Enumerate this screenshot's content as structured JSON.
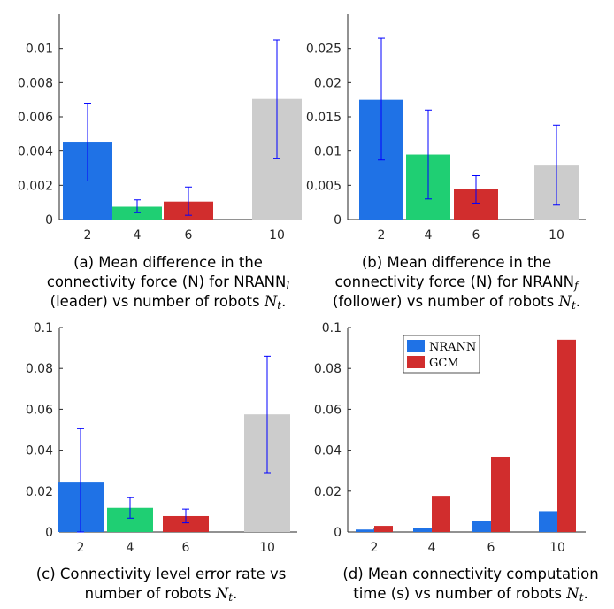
{
  "colors": {
    "blue": "#1f72e6",
    "green": "#1fcf73",
    "red": "#d12d2d",
    "gray": "#cccccc",
    "errorbar": "#0000ff",
    "axis": "#262626"
  },
  "chart_data": [
    {
      "type": "bar",
      "categories": [
        "2",
        "4",
        "6",
        "10"
      ],
      "values": [
        0.00455,
        0.00075,
        0.00105,
        0.00705
      ],
      "error_low": [
        0.00225,
        0.0004,
        0.00025,
        0.00355
      ],
      "error_high": [
        0.0068,
        0.00115,
        0.0019,
        0.0105
      ],
      "bar_colors": [
        "#1f72e6",
        "#1fcf73",
        "#d12d2d",
        "#cccccc"
      ],
      "ylim": [
        0,
        0.012
      ],
      "yticks": [
        0,
        0.002,
        0.004,
        0.006,
        0.008,
        0.01
      ],
      "ytick_labels": [
        "0",
        "0.002",
        "0.004",
        "0.006",
        "0.008",
        "0.01"
      ],
      "caption": {
        "line1": "(a) Mean difference in the",
        "line2": "connectivity force (N) for NRANN",
        "line2_sub": "l",
        "line3": "(leader) vs number of robots ",
        "line3_math": "N",
        "line3_sub": "t",
        "line3_end": "."
      }
    },
    {
      "type": "bar",
      "categories": [
        "2",
        "4",
        "6",
        "10"
      ],
      "values": [
        0.0175,
        0.0095,
        0.0044,
        0.008
      ],
      "error_low": [
        0.0087,
        0.003,
        0.0024,
        0.0021
      ],
      "error_high": [
        0.0265,
        0.016,
        0.0064,
        0.0138
      ],
      "bar_colors": [
        "#1f72e6",
        "#1fcf73",
        "#d12d2d",
        "#cccccc"
      ],
      "ylim": [
        0,
        0.03
      ],
      "yticks": [
        0,
        0.005,
        0.01,
        0.015,
        0.02,
        0.025
      ],
      "ytick_labels": [
        "0",
        "0.005",
        "0.01",
        "0.015",
        "0.02",
        "0.025"
      ],
      "caption": {
        "line1": "(b) Mean difference in the",
        "line2": "connectivity force (N) for NRANN",
        "line2_sub": "f",
        "line3": "(follower) vs number of robots ",
        "line3_math": "N",
        "line3_sub": "t",
        "line3_end": "."
      }
    },
    {
      "type": "bar",
      "categories": [
        "2",
        "4",
        "6",
        "10"
      ],
      "values": [
        0.0242,
        0.0118,
        0.0078,
        0.0575
      ],
      "error_low": [
        0.0,
        0.0068,
        0.0045,
        0.029
      ],
      "error_high": [
        0.0505,
        0.0168,
        0.0112,
        0.086
      ],
      "bar_colors": [
        "#1f72e6",
        "#1fcf73",
        "#d12d2d",
        "#cccccc"
      ],
      "ylim": [
        0,
        0.1
      ],
      "yticks": [
        0,
        0.02,
        0.04,
        0.06,
        0.08,
        0.1
      ],
      "ytick_labels": [
        "0",
        "0.02",
        "0.04",
        "0.06",
        "0.08",
        "0.1"
      ],
      "caption": {
        "line1": "(c) Connectivity level error rate vs",
        "line2": "number of robots ",
        "line2_math": "N",
        "line2_sub": "t",
        "line2_end": "."
      }
    },
    {
      "type": "bar",
      "categories": [
        "2",
        "4",
        "6",
        "10"
      ],
      "series": [
        {
          "name": "NRANN",
          "values": [
            0.0012,
            0.002,
            0.0052,
            0.0102
          ],
          "color": "#1f72e6"
        },
        {
          "name": "GCM",
          "values": [
            0.003,
            0.0177,
            0.0368,
            0.094
          ],
          "color": "#d12d2d"
        }
      ],
      "ylim": [
        0,
        0.1
      ],
      "yticks": [
        0,
        0.02,
        0.04,
        0.06,
        0.08,
        0.1
      ],
      "ytick_labels": [
        "0",
        "0.02",
        "0.04",
        "0.06",
        "0.08",
        "0.1"
      ],
      "legend": "top-left",
      "caption": {
        "line1": "(d) Mean connectivity computation",
        "line2": "time (s) vs number of robots ",
        "line2_math": "N",
        "line2_sub": "t",
        "line2_end": "."
      }
    }
  ]
}
